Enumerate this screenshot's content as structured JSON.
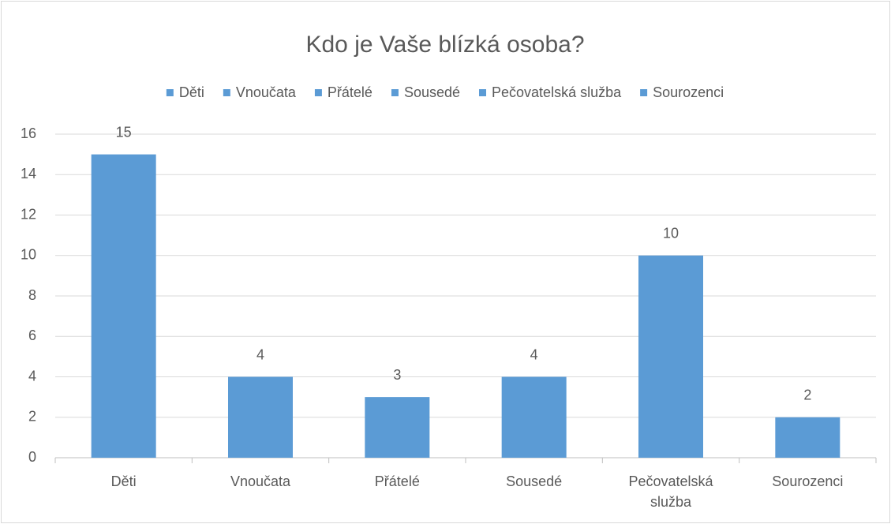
{
  "chart_data": {
    "type": "bar",
    "title": "Kdo je Vaše blízká osoba?",
    "categories": [
      "Děti",
      "Vnoučata",
      "Přátelé",
      "Sousedé",
      "Pečovatelská služba",
      "Sourozenci"
    ],
    "values": [
      15,
      4,
      3,
      4,
      10,
      2
    ],
    "color": "#5b9bd5",
    "ylim": [
      0,
      16
    ],
    "yticks": [
      0,
      2,
      4,
      6,
      8,
      10,
      12,
      14,
      16
    ],
    "grid": true,
    "legend": "top"
  }
}
